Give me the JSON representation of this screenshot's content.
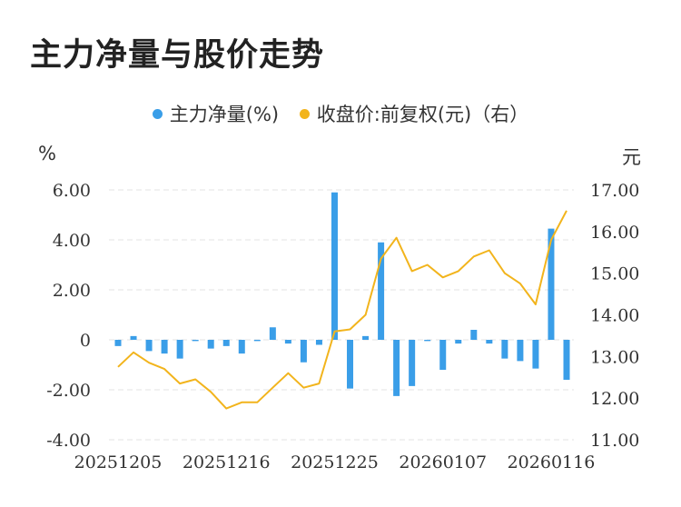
{
  "title": "主力净量与股价走势",
  "legend": {
    "net_label": "主力净量(%)",
    "price_label": "收盘价:前复权(元)（右）"
  },
  "units": {
    "left": "%",
    "right": "元"
  },
  "colors": {
    "bar": "#3a9ee8",
    "line": "#f2b41c",
    "grid": "#e3e3e3"
  },
  "chart_data": {
    "type": "bar+line",
    "x_tick_labels": [
      "20251205",
      "20251216",
      "20251225",
      "20260107",
      "20260116"
    ],
    "left_axis": {
      "ylim": [
        -4,
        6
      ],
      "ticks": [
        "6.00",
        "4.00",
        "2.00",
        "0",
        "-2.00",
        "-4.00"
      ],
      "tick_values": [
        6,
        4,
        2,
        0,
        -2,
        -4
      ]
    },
    "right_axis": {
      "ylim": [
        11,
        17
      ],
      "ticks": [
        "17.00",
        "16.00",
        "15.00",
        "14.00",
        "13.00",
        "12.00",
        "11.00"
      ],
      "tick_values": [
        17,
        16,
        15,
        14,
        13,
        12,
        11
      ]
    },
    "grid": true,
    "series": [
      {
        "name": "主力净量(%)",
        "type": "bar",
        "axis": "left",
        "values": [
          -0.25,
          0.15,
          -0.45,
          -0.55,
          -0.75,
          -0.05,
          -0.35,
          -0.25,
          -0.55,
          -0.05,
          0.5,
          -0.15,
          -0.9,
          -0.2,
          5.9,
          -1.95,
          0.15,
          3.9,
          -2.25,
          -1.85,
          -0.05,
          -1.2,
          -0.15,
          0.4,
          -0.15,
          -0.75,
          -0.85,
          -1.15,
          4.45,
          -1.6
        ]
      },
      {
        "name": "收盘价:前复权(元)（右）",
        "type": "line",
        "axis": "right",
        "values": [
          12.75,
          13.1,
          12.85,
          12.7,
          12.35,
          12.45,
          12.15,
          11.75,
          11.9,
          11.9,
          12.25,
          12.6,
          12.25,
          12.35,
          13.6,
          13.65,
          14.0,
          15.35,
          15.85,
          15.05,
          15.2,
          14.9,
          15.05,
          15.4,
          15.55,
          15.0,
          14.75,
          14.25,
          15.8,
          16.5
        ]
      }
    ]
  }
}
